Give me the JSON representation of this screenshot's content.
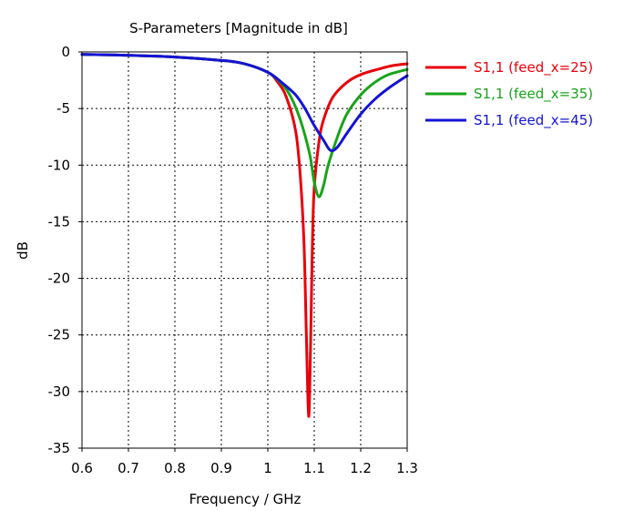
{
  "chart_data": {
    "type": "line",
    "title": "S-Parameters [Magnitude in dB]",
    "xlabel": "Frequency / GHz",
    "ylabel": "dB",
    "xlim": [
      0.6,
      1.3
    ],
    "ylim": [
      -35,
      0
    ],
    "xticks": [
      "0.6",
      "0.7",
      "0.8",
      "0.9",
      "1",
      "1.1",
      "1.2",
      "1.3"
    ],
    "yticks": [
      "0",
      "-5",
      "-10",
      "-15",
      "-20",
      "-25",
      "-30",
      "-35"
    ],
    "grid": true,
    "legend_position": "right",
    "series": [
      {
        "name": "S1,1 (feed_x=25)",
        "color": "#e8000b",
        "points": [
          [
            0.6,
            -0.22
          ],
          [
            0.7,
            -0.3
          ],
          [
            0.8,
            -0.45
          ],
          [
            0.9,
            -0.75
          ],
          [
            0.95,
            -1.05
          ],
          [
            1.0,
            -1.8
          ],
          [
            1.02,
            -2.6
          ],
          [
            1.04,
            -4.0
          ],
          [
            1.06,
            -7.0
          ],
          [
            1.07,
            -11.0
          ],
          [
            1.078,
            -17.0
          ],
          [
            1.083,
            -25.0
          ],
          [
            1.088,
            -32.2
          ],
          [
            1.092,
            -26.0
          ],
          [
            1.096,
            -17.0
          ],
          [
            1.1,
            -12.0
          ],
          [
            1.11,
            -8.0
          ],
          [
            1.12,
            -6.0
          ],
          [
            1.14,
            -4.0
          ],
          [
            1.17,
            -2.7
          ],
          [
            1.2,
            -2.0
          ],
          [
            1.24,
            -1.5
          ],
          [
            1.27,
            -1.2
          ],
          [
            1.3,
            -1.05
          ]
        ]
      },
      {
        "name": "S1,1 (feed_x=35)",
        "color": "#1aa31a",
        "points": [
          [
            0.6,
            -0.22
          ],
          [
            0.7,
            -0.3
          ],
          [
            0.8,
            -0.45
          ],
          [
            0.9,
            -0.75
          ],
          [
            0.95,
            -1.05
          ],
          [
            1.0,
            -1.8
          ],
          [
            1.03,
            -2.8
          ],
          [
            1.05,
            -4.0
          ],
          [
            1.07,
            -6.0
          ],
          [
            1.09,
            -9.0
          ],
          [
            1.1,
            -11.5
          ],
          [
            1.11,
            -12.8
          ],
          [
            1.12,
            -11.8
          ],
          [
            1.13,
            -10.0
          ],
          [
            1.15,
            -7.5
          ],
          [
            1.17,
            -5.5
          ],
          [
            1.2,
            -3.8
          ],
          [
            1.23,
            -2.7
          ],
          [
            1.26,
            -2.0
          ],
          [
            1.3,
            -1.55
          ]
        ]
      },
      {
        "name": "S1,1 (feed_x=45)",
        "color": "#1414d4",
        "points": [
          [
            0.6,
            -0.22
          ],
          [
            0.7,
            -0.3
          ],
          [
            0.8,
            -0.45
          ],
          [
            0.9,
            -0.75
          ],
          [
            0.95,
            -1.05
          ],
          [
            1.0,
            -1.8
          ],
          [
            1.03,
            -2.7
          ],
          [
            1.06,
            -3.8
          ],
          [
            1.08,
            -5.0
          ],
          [
            1.1,
            -6.5
          ],
          [
            1.12,
            -7.8
          ],
          [
            1.135,
            -8.7
          ],
          [
            1.15,
            -8.4
          ],
          [
            1.17,
            -7.2
          ],
          [
            1.2,
            -5.5
          ],
          [
            1.23,
            -4.2
          ],
          [
            1.26,
            -3.2
          ],
          [
            1.3,
            -2.1
          ]
        ]
      }
    ]
  }
}
